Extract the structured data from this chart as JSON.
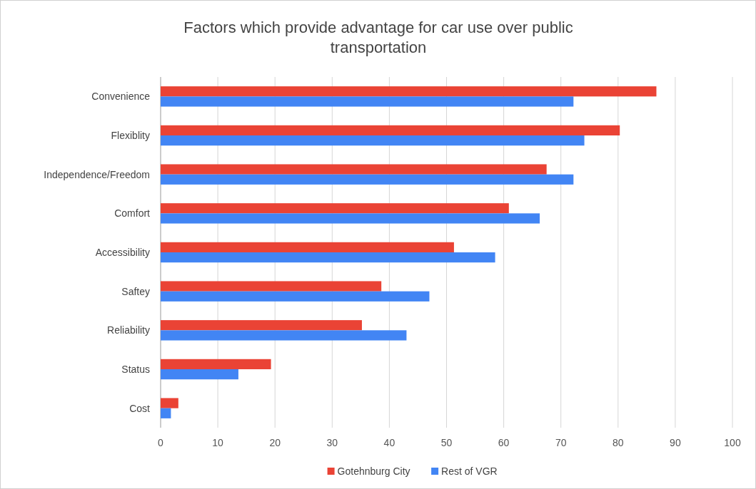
{
  "chart_data": {
    "type": "bar",
    "orientation": "horizontal",
    "title": "Factors which provide advantage for car use over public transportation",
    "categories": [
      "Convenience",
      "Flexiblity",
      "Independence/Freedom",
      "Comfort",
      "Accessibility",
      "Saftey",
      "Reliability",
      "Status",
      "Cost"
    ],
    "series": [
      {
        "name": "Gotehnburg City",
        "color": "#ea4335",
        "values": [
          86.7,
          80.3,
          67.5,
          60.9,
          51.3,
          38.6,
          35.2,
          19.3,
          3.1
        ]
      },
      {
        "name": "Rest of VGR",
        "color": "#4285f4",
        "values": [
          72.2,
          74.1,
          72.2,
          66.3,
          58.5,
          47.0,
          43.0,
          13.6,
          1.8
        ]
      }
    ],
    "xlim": [
      0,
      100
    ],
    "xticks": [
      0,
      10,
      20,
      30,
      40,
      50,
      60,
      70,
      80,
      90,
      100
    ],
    "grid": "x",
    "legend": "bottom"
  }
}
